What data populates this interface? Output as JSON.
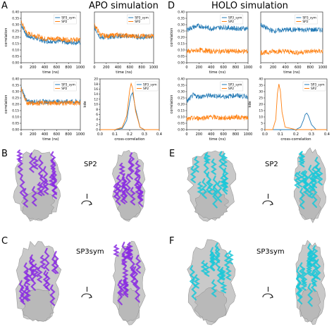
{
  "panel_letters": {
    "A": "A",
    "B": "B",
    "C": "C",
    "D": "D",
    "E": "E",
    "F": "F"
  },
  "titles": {
    "apo": "APO simulation",
    "holo": "HOLO simulation"
  },
  "model_labels": {
    "b": "SP2",
    "c": "SP3sym",
    "e": "SP2",
    "f": "SP3sym"
  },
  "rotation_symbol": "I",
  "colors": {
    "sp3_sym": "#1f77b4",
    "sp2": "#ff7f0e",
    "apo_ribbon": "#8a2be2",
    "holo_ribbon": "#19c8d8",
    "map": "#c9c9c9"
  },
  "chart_data": [
    {
      "type": "line",
      "panel": "A-1",
      "x_label": "time (ns)",
      "y_label": "correlation",
      "xlim": [
        0,
        1000
      ],
      "ylim": [
        0,
        0.4
      ],
      "x_ticks": [
        "0",
        "200",
        "400",
        "600",
        "800",
        "1000"
      ],
      "y_ticks": [
        "0.00",
        "0.05",
        "0.10",
        "0.15",
        "0.20",
        "0.25",
        "0.30",
        "0.35",
        "0.40"
      ],
      "legend": [
        "SP3_sym",
        "SP2"
      ],
      "series": [
        {
          "name": "SP3_sym",
          "x": [
            0,
            100,
            200,
            400,
            600,
            800,
            1000
          ],
          "values": [
            0.3,
            0.21,
            0.2,
            0.17,
            0.17,
            0.16,
            0.16
          ]
        },
        {
          "name": "SP2",
          "x": [
            0,
            100,
            200,
            400,
            600,
            800,
            1000
          ],
          "values": [
            0.32,
            0.23,
            0.22,
            0.19,
            0.19,
            0.18,
            0.18
          ]
        }
      ]
    },
    {
      "type": "line",
      "panel": "A-2",
      "x_label": "time (ns)",
      "y_label": "",
      "xlim": [
        0,
        1000
      ],
      "ylim": [
        0,
        0.4
      ],
      "x_ticks": [
        "0",
        "200",
        "400",
        "600",
        "800",
        "1000"
      ],
      "y_ticks": [],
      "legend": [
        "SP3_sym",
        "SP2"
      ],
      "series": [
        {
          "name": "SP3_sym",
          "x": [
            0,
            100,
            200,
            400,
            600,
            800,
            1000
          ],
          "values": [
            0.28,
            0.2,
            0.2,
            0.21,
            0.21,
            0.2,
            0.21
          ]
        },
        {
          "name": "SP2",
          "x": [
            0,
            100,
            200,
            400,
            600,
            800,
            1000
          ],
          "values": [
            0.3,
            0.22,
            0.21,
            0.22,
            0.21,
            0.21,
            0.21
          ]
        }
      ]
    },
    {
      "type": "line",
      "panel": "A-3",
      "x_label": "time (ns)",
      "y_label": "correlation",
      "xlim": [
        0,
        1000
      ],
      "ylim": [
        0,
        0.4
      ],
      "x_ticks": [
        "0",
        "200",
        "400",
        "600",
        "800",
        "1000"
      ],
      "y_ticks": [
        "0.00",
        "0.05",
        "0.10",
        "0.15",
        "0.20",
        "0.25",
        "0.30",
        "0.35",
        "0.40"
      ],
      "legend": [
        "SP3_sym",
        "SP2"
      ],
      "series": [
        {
          "name": "SP3_sym",
          "x": [
            0,
            100,
            200,
            400,
            600,
            800,
            1000
          ],
          "values": [
            0.33,
            0.22,
            0.22,
            0.22,
            0.22,
            0.22,
            0.22
          ]
        },
        {
          "name": "SP2",
          "x": [
            0,
            100,
            200,
            400,
            600,
            800,
            1000
          ],
          "values": [
            0.32,
            0.21,
            0.21,
            0.21,
            0.21,
            0.21,
            0.21
          ]
        }
      ]
    },
    {
      "type": "line",
      "panel": "A-4",
      "x_label": "cross-correlation",
      "y_label": "kde",
      "xlim": [
        0,
        0.4
      ],
      "ylim": [
        0,
        22
      ],
      "x_ticks": [
        "0.0",
        "0.1",
        "0.2",
        "0.3",
        "0.4"
      ],
      "y_ticks": [
        "0",
        "2",
        "4",
        "6",
        "8",
        "10",
        "12",
        "14",
        "16",
        "18",
        "20"
      ],
      "legend": [
        "SP3_sym",
        "SP2"
      ],
      "series": [
        {
          "name": "SP3_sym",
          "x": [
            0,
            0.1,
            0.15,
            0.18,
            0.2,
            0.21,
            0.22,
            0.24,
            0.27,
            0.3,
            0.4
          ],
          "values": [
            0,
            0,
            0.5,
            4,
            12,
            15,
            16,
            9,
            1,
            0,
            0
          ]
        },
        {
          "name": "SP2",
          "x": [
            0,
            0.1,
            0.15,
            0.18,
            0.2,
            0.21,
            0.22,
            0.24,
            0.27,
            0.3,
            0.4
          ],
          "values": [
            0,
            0,
            1,
            6,
            17,
            20,
            18,
            8,
            1,
            0,
            0
          ]
        }
      ]
    },
    {
      "type": "line",
      "panel": "D-1",
      "x_label": "time (ns)",
      "y_label": "correlation",
      "xlim": [
        0,
        1000
      ],
      "ylim": [
        0,
        0.4
      ],
      "x_ticks": [
        "0",
        "200",
        "400",
        "600",
        "800",
        "1000"
      ],
      "y_ticks": [
        "0.00",
        "0.05",
        "0.10",
        "0.15",
        "0.20",
        "0.25",
        "0.30",
        "0.35",
        "0.40"
      ],
      "legend": [
        "SP3_sym",
        "SP2"
      ],
      "series": [
        {
          "name": "SP3_sym",
          "x": [
            0,
            100,
            200,
            400,
            600,
            800,
            1000
          ],
          "values": [
            0.26,
            0.28,
            0.29,
            0.27,
            0.28,
            0.27,
            0.27
          ]
        },
        {
          "name": "SP2",
          "x": [
            0,
            100,
            200,
            400,
            600,
            800,
            1000
          ],
          "values": [
            0.09,
            0.09,
            0.1,
            0.09,
            0.09,
            0.09,
            0.09
          ]
        }
      ]
    },
    {
      "type": "line",
      "panel": "D-2",
      "x_label": "time (ns)",
      "y_label": "",
      "xlim": [
        0,
        1000
      ],
      "ylim": [
        0,
        0.4
      ],
      "x_ticks": [
        "0",
        "200",
        "400",
        "600",
        "800",
        "1000"
      ],
      "y_ticks": [],
      "legend": [
        "SP3_sym",
        "SP2"
      ],
      "series": [
        {
          "name": "SP3_sym",
          "x": [
            0,
            100,
            200,
            400,
            600,
            800,
            1000
          ],
          "values": [
            0.3,
            0.27,
            0.25,
            0.26,
            0.26,
            0.26,
            0.26
          ]
        },
        {
          "name": "SP2",
          "x": [
            0,
            100,
            200,
            400,
            600,
            800,
            1000
          ],
          "values": [
            0.08,
            0.08,
            0.09,
            0.09,
            0.08,
            0.09,
            0.09
          ]
        }
      ]
    },
    {
      "type": "line",
      "panel": "D-3",
      "x_label": "time (ns)",
      "y_label": "correlation",
      "xlim": [
        0,
        1000
      ],
      "ylim": [
        0,
        0.4
      ],
      "x_ticks": [
        "0",
        "200",
        "400",
        "600",
        "800",
        "1000"
      ],
      "y_ticks": [
        "0.00",
        "0.05",
        "0.10",
        "0.15",
        "0.20",
        "0.25",
        "0.30",
        "0.35",
        "0.40"
      ],
      "legend": [
        "SP3_sym",
        "SP2"
      ],
      "series": [
        {
          "name": "SP3_sym",
          "x": [
            0,
            100,
            200,
            400,
            600,
            800,
            1000
          ],
          "values": [
            0.22,
            0.27,
            0.26,
            0.27,
            0.26,
            0.27,
            0.26
          ]
        },
        {
          "name": "SP2",
          "x": [
            0,
            100,
            200,
            400,
            600,
            800,
            1000
          ],
          "values": [
            0.08,
            0.09,
            0.09,
            0.1,
            0.09,
            0.1,
            0.09
          ]
        }
      ]
    },
    {
      "type": "line",
      "panel": "D-4",
      "x_label": "cross-correlation",
      "y_label": "kde",
      "xlim": [
        0,
        0.4
      ],
      "ylim": [
        0,
        40
      ],
      "x_ticks": [
        "0.0",
        "0.1",
        "0.2",
        "0.3",
        "0.4"
      ],
      "y_ticks": [
        "0",
        "5",
        "10",
        "15",
        "20",
        "25",
        "30",
        "35",
        "40"
      ],
      "legend": [
        "SP3_sym",
        "SP2"
      ],
      "series": [
        {
          "name": "SP3_sym",
          "x": [
            0,
            0.2,
            0.23,
            0.25,
            0.26,
            0.27,
            0.28,
            0.3,
            0.33,
            0.4
          ],
          "values": [
            0,
            0,
            2,
            8,
            12,
            13,
            11,
            4,
            0,
            0
          ]
        },
        {
          "name": "SP2",
          "x": [
            0,
            0.05,
            0.07,
            0.08,
            0.09,
            0.1,
            0.11,
            0.13,
            0.2,
            0.4
          ],
          "values": [
            0,
            0,
            8,
            28,
            36,
            30,
            14,
            2,
            0,
            0
          ]
        }
      ]
    }
  ]
}
